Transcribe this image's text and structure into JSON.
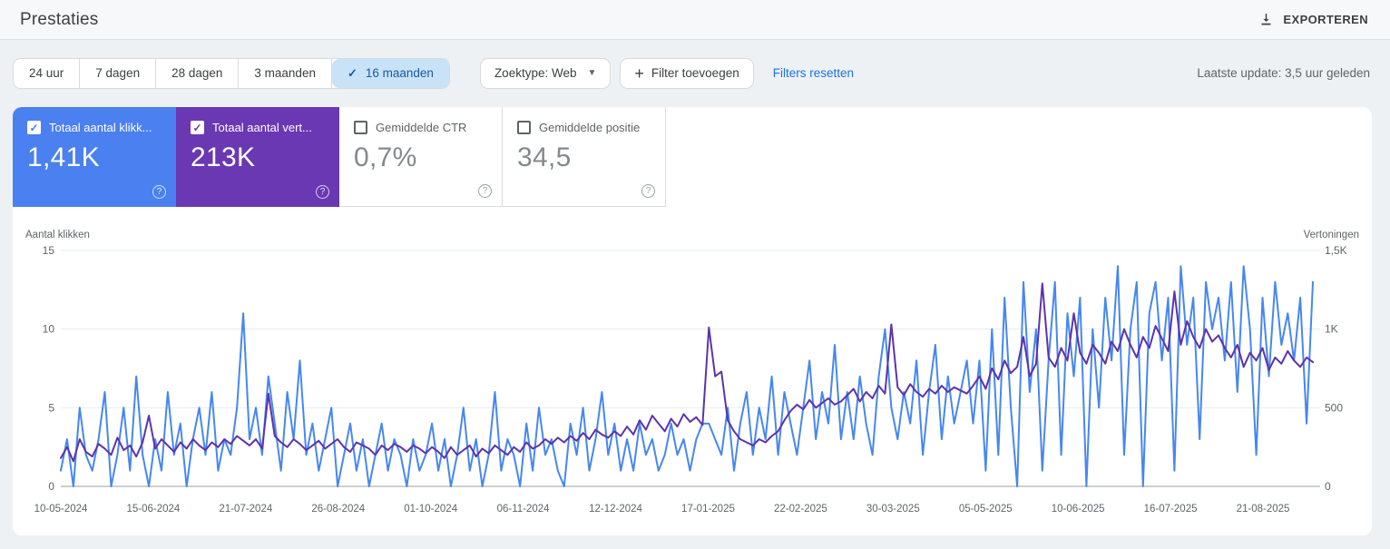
{
  "header": {
    "title": "Prestaties",
    "export_label": "EXPORTEREN"
  },
  "toolbar": {
    "date_tabs": [
      {
        "label": "24 uur",
        "selected": false
      },
      {
        "label": "7 dagen",
        "selected": false
      },
      {
        "label": "28 dagen",
        "selected": false
      },
      {
        "label": "3 maanden",
        "selected": false
      },
      {
        "label": "16 maanden",
        "selected": true
      }
    ],
    "search_type_label": "Zoektype: Web",
    "add_filter_label": "Filter toevoegen",
    "reset_filters_label": "Filters resetten",
    "last_update": "Laatste update: 3,5 uur geleden"
  },
  "cards": [
    {
      "label": "Totaal aantal klikk...",
      "value": "1,41K",
      "checked": true,
      "bg": "#4b80f0",
      "check_color": "#4b80f0"
    },
    {
      "label": "Totaal aantal vert...",
      "value": "213K",
      "checked": true,
      "bg": "#6a38b3",
      "check_color": "#6a38b3"
    },
    {
      "label": "Gemiddelde CTR",
      "value": "0,7%",
      "checked": false,
      "bg": "",
      "check_color": ""
    },
    {
      "label": "Gemiddelde positie",
      "value": "34,5",
      "checked": false,
      "bg": "",
      "check_color": ""
    }
  ],
  "chart_data": {
    "type": "line",
    "grid": "horizontal",
    "left_axis": {
      "label": "Aantal klikken",
      "ticks": [
        "15",
        "10",
        "5",
        "0"
      ],
      "range": [
        0,
        15
      ]
    },
    "right_axis": {
      "label": "Vertoningen",
      "ticks": [
        "1,5K",
        "1K",
        "500",
        "0"
      ],
      "range": [
        0,
        1500
      ]
    },
    "x_ticks": [
      "10-05-2024",
      "15-06-2024",
      "21-07-2024",
      "26-08-2024",
      "01-10-2024",
      "06-11-2024",
      "12-12-2024",
      "17-01-2025",
      "22-02-2025",
      "30-03-2025",
      "05-05-2025",
      "10-06-2025",
      "16-07-2025",
      "21-08-2025"
    ],
    "series": [
      {
        "name": "Aantal klikken",
        "axis": "left",
        "color": "#4687f0",
        "values": [
          1,
          3,
          0,
          5,
          2,
          1,
          3,
          6,
          0,
          2,
          5,
          1,
          7,
          2,
          0,
          3,
          1,
          6,
          2,
          4,
          0,
          3,
          5,
          2,
          6,
          1,
          3,
          2,
          5,
          11,
          3,
          5,
          2,
          7,
          4,
          1,
          6,
          3,
          8,
          2,
          4,
          1,
          3,
          5,
          0,
          2,
          4,
          1,
          3,
          0,
          2,
          4,
          1,
          3,
          2,
          0,
          3,
          1,
          2,
          4,
          1,
          3,
          0,
          2,
          5,
          1,
          3,
          0,
          2,
          6,
          1,
          3,
          2,
          0,
          4,
          1,
          5,
          2,
          3,
          1,
          0,
          4,
          2,
          5,
          1,
          3,
          6,
          2,
          4,
          1,
          3,
          1,
          4,
          2,
          3,
          1,
          2,
          4,
          2,
          3,
          1,
          3,
          4,
          4,
          3,
          2,
          5,
          1,
          4,
          6,
          2,
          5,
          3,
          7,
          2,
          6,
          4,
          2,
          5,
          8,
          3,
          6,
          4,
          9,
          3,
          6,
          3,
          7,
          4,
          2,
          7,
          10,
          5,
          3,
          6,
          4,
          8,
          2,
          6,
          9,
          3,
          7,
          4,
          6,
          8,
          4,
          8,
          1,
          10,
          2,
          12,
          5,
          0,
          13,
          6,
          10,
          1,
          8,
          13,
          2,
          11,
          7,
          12,
          0,
          10,
          5,
          12,
          8,
          14,
          2,
          10,
          13,
          0,
          11,
          13,
          8,
          12,
          1,
          14,
          9,
          12,
          3,
          13,
          10,
          12,
          8,
          13,
          6,
          14,
          10,
          2,
          12,
          7,
          13,
          9,
          11,
          8,
          12,
          4,
          13
        ]
      },
      {
        "name": "Vertoningen",
        "axis": "right",
        "color": "#5c33ad",
        "values": [
          180,
          250,
          160,
          300,
          220,
          190,
          270,
          240,
          200,
          310,
          230,
          260,
          190,
          280,
          450,
          240,
          300,
          260,
          220,
          280,
          240,
          300,
          260,
          230,
          280,
          250,
          300,
          270,
          320,
          290,
          260,
          300,
          240,
          590,
          320,
          280,
          250,
          300,
          270,
          230,
          260,
          290,
          240,
          270,
          300,
          250,
          220,
          280,
          260,
          240,
          200,
          260,
          230,
          270,
          250,
          220,
          260,
          240,
          210,
          250,
          220,
          180,
          250,
          200,
          230,
          260,
          190,
          240,
          210,
          260,
          230,
          200,
          250,
          220,
          280,
          240,
          260,
          300,
          270,
          310,
          280,
          320,
          290,
          340,
          300,
          360,
          330,
          310,
          350,
          320,
          380,
          330,
          420,
          360,
          450,
          400,
          350,
          430,
          380,
          460,
          410,
          440,
          390,
          1010,
          700,
          730,
          420,
          350,
          300,
          280,
          260,
          300,
          280,
          320,
          350,
          420,
          480,
          520,
          490,
          550,
          500,
          530,
          560,
          520,
          540,
          580,
          620,
          540,
          600,
          560,
          640,
          590,
          1030,
          630,
          580,
          650,
          600,
          570,
          620,
          590,
          640,
          600,
          630,
          610,
          590,
          640,
          700,
          620,
          750,
          680,
          800,
          720,
          760,
          950,
          700,
          780,
          1290,
          820,
          760,
          880,
          800,
          1100,
          850,
          780,
          900,
          850,
          780,
          920,
          860,
          1000,
          900,
          820,
          950,
          880,
          1020,
          940,
          860,
          1240,
          900,
          1050,
          950,
          880,
          1000,
          920,
          960,
          880,
          820,
          900,
          760,
          850,
          800,
          880,
          740,
          820,
          780,
          860,
          800,
          760,
          820,
          790
        ]
      }
    ]
  }
}
